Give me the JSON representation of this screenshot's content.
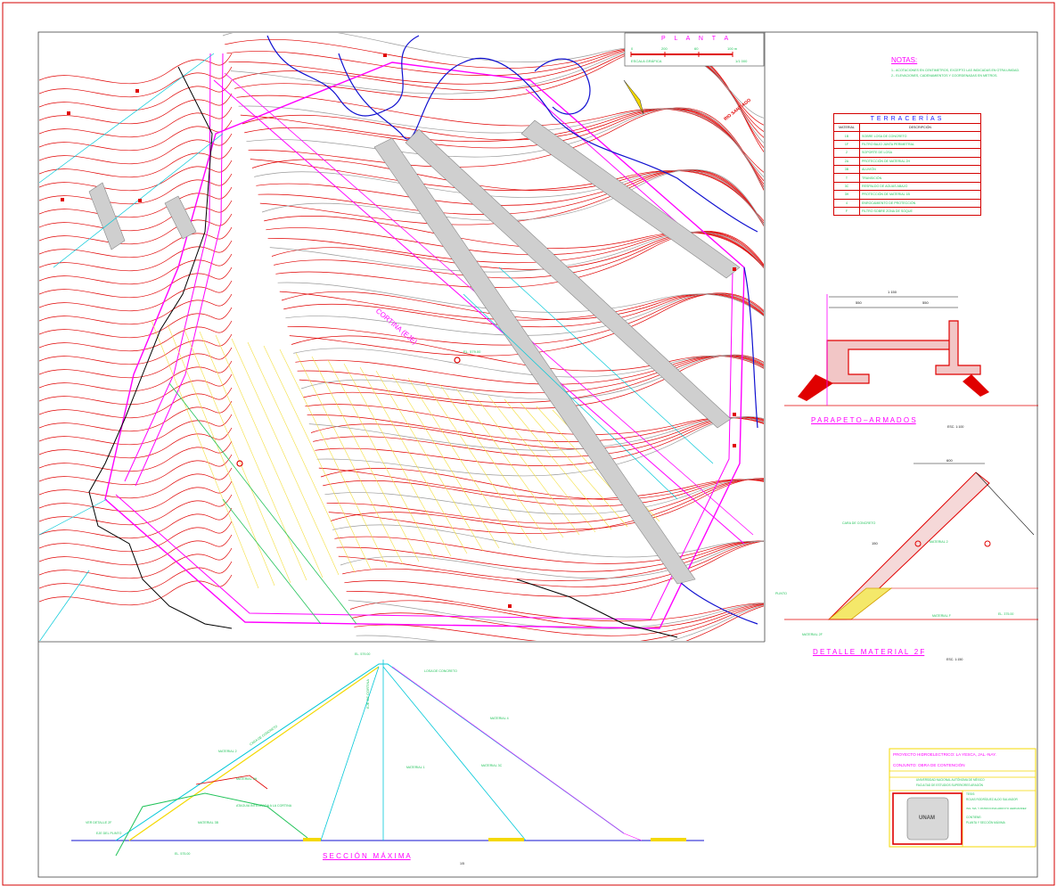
{
  "plan": {
    "title": "P L A N T A",
    "scale_ticks": [
      "0",
      "200",
      "60",
      "100 m"
    ],
    "scale_caption": "ESCALA GRÁFICA",
    "scale_ratio": "1/1 000",
    "river_label": "RIO SANTIAGO",
    "dam_axis_label": "CORTINA (EJE)",
    "elevation_label": "EL. 579.00"
  },
  "notes": {
    "title": "NOTAS:",
    "lines": [
      "1.- ACOTACIONES EN CENTIMETROS, EXCEPTO LAS INDICADAS EN OTRA UNIDAD.",
      "2.- ELEVACIONES, CADENAMIENTOS Y COORDENADAS EN METROS."
    ]
  },
  "earthworks_table": {
    "title": "TERRACERÍAS",
    "headers": [
      "MATERIAL",
      "DESCRIPCIÓN"
    ],
    "rows": [
      [
        "1B",
        "SOBRE LOSA DE CONCRETO"
      ],
      [
        "1F",
        "FILTRO BAJO JUNTA PERIMETRAL"
      ],
      [
        "2",
        "SOPORTE DE LOSA"
      ],
      [
        "2A",
        "PROTECCIÓN DE MATERIAL 2H"
      ],
      [
        "3B",
        "ALUVIÓN"
      ],
      [
        "T",
        "TRANSICIÓN"
      ],
      [
        "3C",
        "RESPALDO DE AGUAS ABAJO"
      ],
      [
        "3H",
        "PROTECCIÓN DE MATERIAL 1B"
      ],
      [
        "4",
        "ENROCAMIENTO DE PROTECCIÓN"
      ],
      [
        "F",
        "FILTRO SOBRE ZONA DE SOQUE"
      ]
    ]
  },
  "parapet": {
    "title": "P A R A P E T O – A R M A D O S",
    "scale": "ESC. 1:100",
    "dims": [
      "1 150",
      "550",
      "550"
    ]
  },
  "material_detail": {
    "title": "D E T A L L E   M A T E R I A L   2 F",
    "scale": "ESC. 1:150",
    "labels": [
      "CARA DE CONCRETO",
      "MATERIAL 2",
      "MATERIAL F",
      "MATERIAL 2F",
      "PLINTO",
      "EL. 375.00",
      "600",
      "150"
    ]
  },
  "section": {
    "title": "S E C C I Ó N   M Á X I M A",
    "scale": "1/5",
    "labels": [
      "EJE DE CORTINA",
      "MATERIAL 1",
      "MATERIAL 3C",
      "MATERIAL 4",
      "CARA DE CONCRETO",
      "MATERIAL 2",
      "MATERIAL 3H",
      "ATAGUIA INTEGRADA A LA CORTINA",
      "MATERIAL 3B",
      "EJE DEL PLINTO",
      "VER DETALLE 2F",
      "LOSA DE CONCRETO",
      "EL. 579.00",
      "EL. 575.00"
    ]
  },
  "title_block": {
    "project": "PROYECTO HIDROELECTRICO: LA YESCA, JAL.-NAY.",
    "subject": "CONJUNTO: OBRA DE CONTENCIÓN",
    "institution_1": "UNIVERSIDAD NACIONAL AUTÓNOMA DE MÉXICO",
    "institution_2": "FACULTAD DE ESTUDIOS SUPERIORES ARAGÓN",
    "author_label": "TESIS:",
    "author": "ROJAS RODRÍGUEZ ALDO SALVADOR",
    "advisor": "ING. MA. Y PATRIOCINIA ARROYO HERNANDEZ",
    "content_label": "CONTIENE:",
    "content": "PLANTA Y SECCIÓN MÁXIMA",
    "seal_text": "UNAM"
  },
  "colors": {
    "contour": "#e00000",
    "dam": "#ff00ff",
    "text": "#22c35a",
    "river": "#1010d0",
    "grid": "#00c8d8",
    "frame": "#d40000"
  }
}
